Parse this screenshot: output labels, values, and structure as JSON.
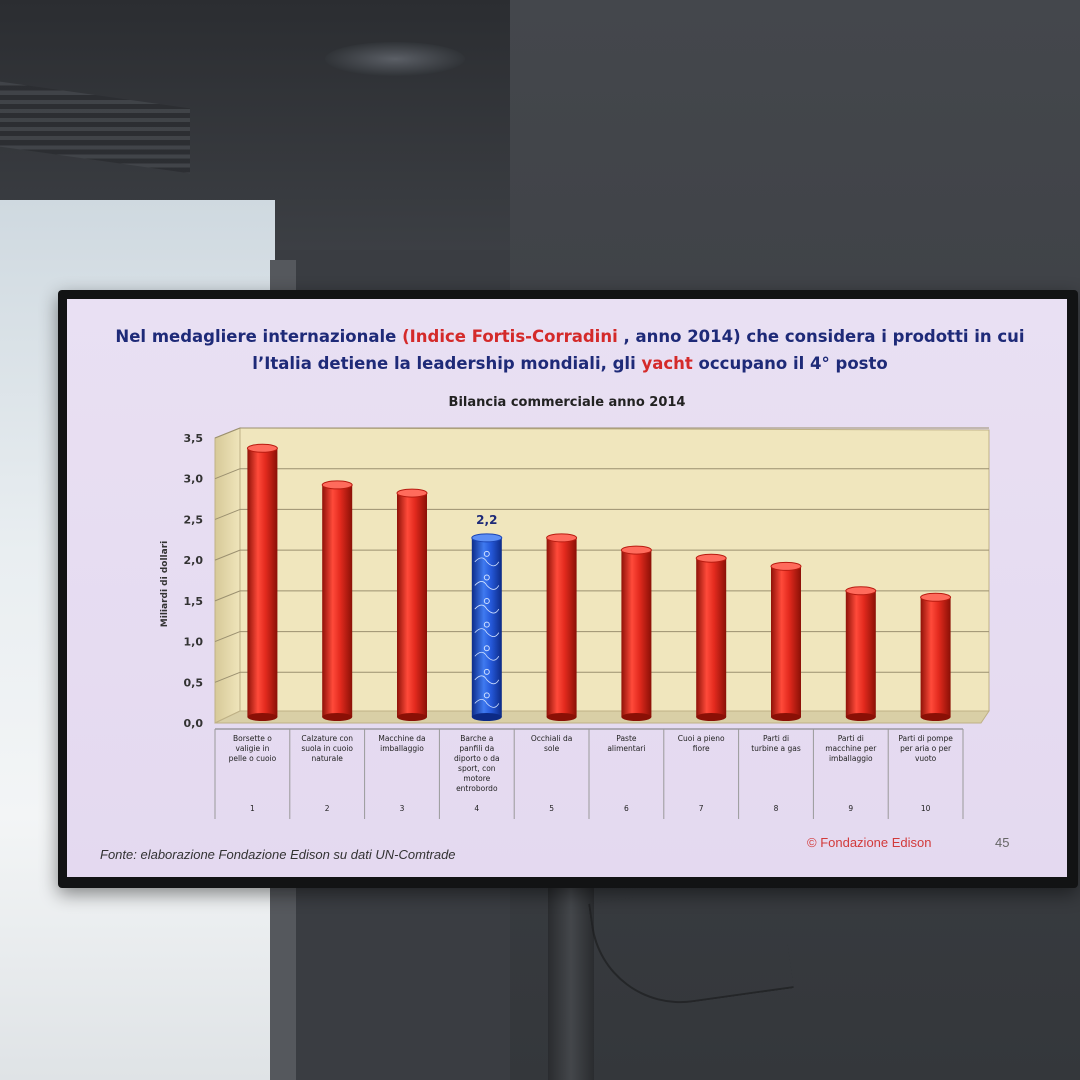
{
  "slide": {
    "title_part1": "Nel medagliere internazionale ",
    "title_highlight1": "(Indice Fortis-Corradini",
    "title_part2": " , anno 2014) che considera i prodotti in cui",
    "title_line2_part1": "l’Italia detiene la leadership mondiali, gli ",
    "title_highlight2": "yacht",
    "title_line2_part2": " occupano il 4° posto",
    "source": "Fonte: elaborazione Fondazione Edison su dati UN-Comtrade",
    "copyright": "© Fondazione Edison",
    "page_number": "45"
  },
  "colors": {
    "bar": "#e02a1e",
    "highlight_bar": "#1f52d6",
    "floor": "#eee3b7",
    "title": "#1e2a78",
    "accent": "#d42a2a"
  },
  "chart_data": {
    "type": "bar",
    "title": "Bilancia commerciale anno 2014",
    "ylabel": "Miliardi di dollari",
    "ylim": [
      0,
      3.5
    ],
    "yticks": [
      "0,0",
      "0,5",
      "1,0",
      "1,5",
      "2,0",
      "2,5",
      "3,0",
      "3,5"
    ],
    "categories": [
      "Borsette o valigie in pelle o cuoio",
      "Calzature con suola in cuoio naturale",
      "Macchine da imballaggio",
      "Barche a panfili da diporto o da sport, con motore entrobordo",
      "Occhiali da sole",
      "Paste alimentari",
      "Cuoi a pieno fiore",
      "Parti di turbine a gas",
      "Parti di macchine per imballaggio",
      "Parti di pompe per aria o per vuoto"
    ],
    "ranks": [
      "1",
      "2",
      "3",
      "4",
      "5",
      "6",
      "7",
      "8",
      "9",
      "10"
    ],
    "values": [
      3.3,
      2.85,
      2.75,
      2.2,
      2.2,
      2.05,
      1.95,
      1.85,
      1.55,
      1.47
    ],
    "highlight_index": 3,
    "highlight_label": "2,2",
    "grid": true
  }
}
